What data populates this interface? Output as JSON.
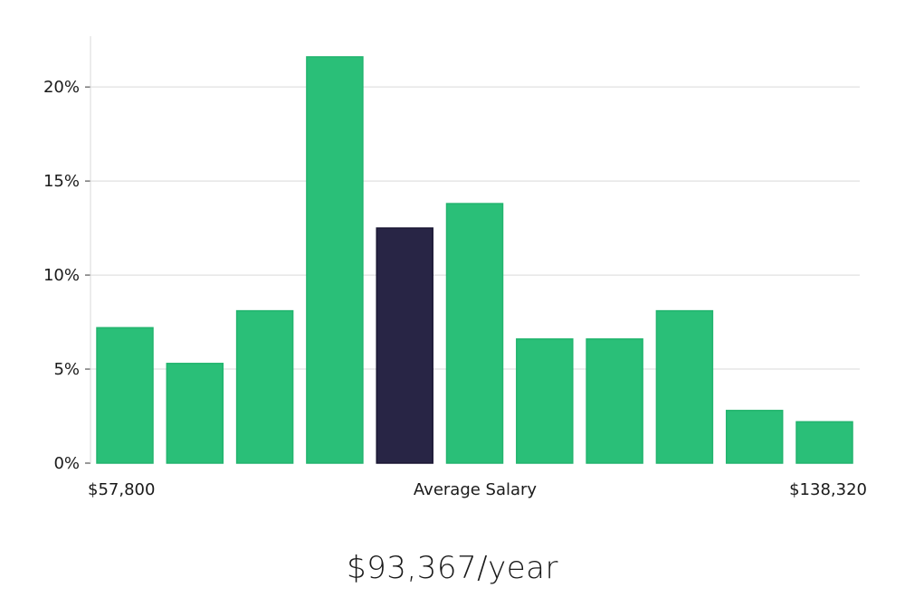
{
  "chart_data": {
    "type": "bar",
    "categories": [
      "1",
      "2",
      "3",
      "4",
      "5",
      "6",
      "7",
      "8",
      "9",
      "10",
      "11"
    ],
    "values": [
      7.2,
      5.3,
      8.1,
      21.6,
      12.5,
      13.8,
      6.6,
      6.6,
      8.1,
      2.8,
      2.2
    ],
    "highlight_index": 4,
    "ylim": [
      0,
      22.7
    ],
    "yticks": [
      0,
      5,
      10,
      15,
      20
    ],
    "ytick_labels": [
      "0%",
      "5%",
      "10%",
      "15%",
      "20%"
    ],
    "x_labels": {
      "left": "$57,800",
      "center": "Average Salary",
      "right": "$138,320"
    },
    "grid": true,
    "colors": {
      "bar": "#2abf78",
      "bar_stroke": "#22b46e",
      "highlight": "#282545",
      "highlight_stroke": "#1a1733"
    }
  },
  "summary": {
    "salary_text": "$93,367/year"
  }
}
